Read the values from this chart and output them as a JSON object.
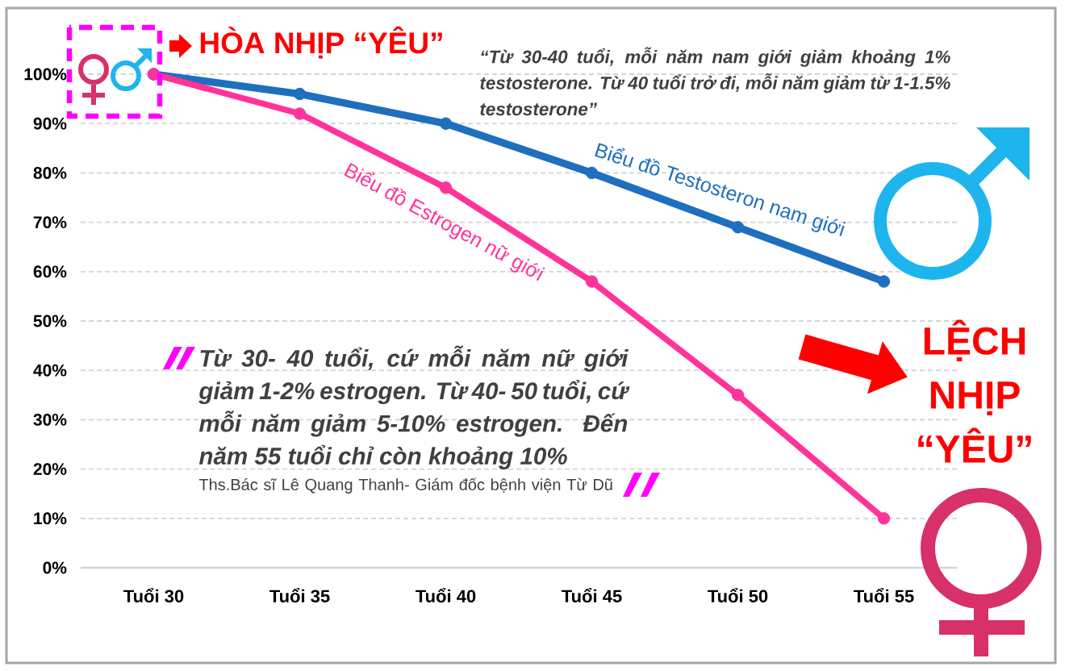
{
  "chart_data": {
    "type": "line",
    "title": "HÒA NHỊP “YÊU”",
    "categories": [
      "Tuổi 30",
      "Tuổi 35",
      "Tuổi 40",
      "Tuổi 45",
      "Tuổi 50",
      "Tuổi 55"
    ],
    "series": [
      {
        "name": "Biểu đồ Testosteron nam giới",
        "color": "#1f6fbf",
        "values": [
          100,
          96,
          90,
          80,
          69,
          58
        ]
      },
      {
        "name": "Biểu đồ Estrogen nữ giới",
        "color": "#ff3399",
        "values": [
          100,
          92,
          77,
          58,
          35,
          10
        ]
      }
    ],
    "ylim": [
      0,
      100
    ],
    "yticks": [
      {
        "value": 0,
        "label": "0%"
      },
      {
        "value": 10,
        "label": "10%"
      },
      {
        "value": 20,
        "label": "20%"
      },
      {
        "value": 30,
        "label": "30%"
      },
      {
        "value": 40,
        "label": "40%"
      },
      {
        "value": 50,
        "label": "50%"
      },
      {
        "value": 60,
        "label": "60%"
      },
      {
        "value": 70,
        "label": "70%"
      },
      {
        "value": 80,
        "label": "80%"
      },
      {
        "value": 90,
        "label": "90%"
      },
      {
        "value": 100,
        "label": "100%"
      }
    ],
    "grid": "y",
    "marker": "circle",
    "annotations": [
      "“Từ 30-40 tuổi, mỗi năm nam giới giảm khoảng 1% testosterone. Từ 40 tuổi trở đi, mỗi năm giảm từ 1-1.5% testosterone”",
      "Từ 30- 40 tuổi, cứ mỗi năm nữ giới giảm 1-2% estrogen. Từ 40- 50 tuổi, cứ mỗi năm giảm 5-10% estrogen. Đến năm 55 tuổi chỉ còn khoảng 10%",
      "Ths.Bác sĩ Lê Quang Thanh- Giám đốc bệnh viện Từ Dũ",
      "LỆCH NHỊP “YÊU”"
    ]
  }
}
